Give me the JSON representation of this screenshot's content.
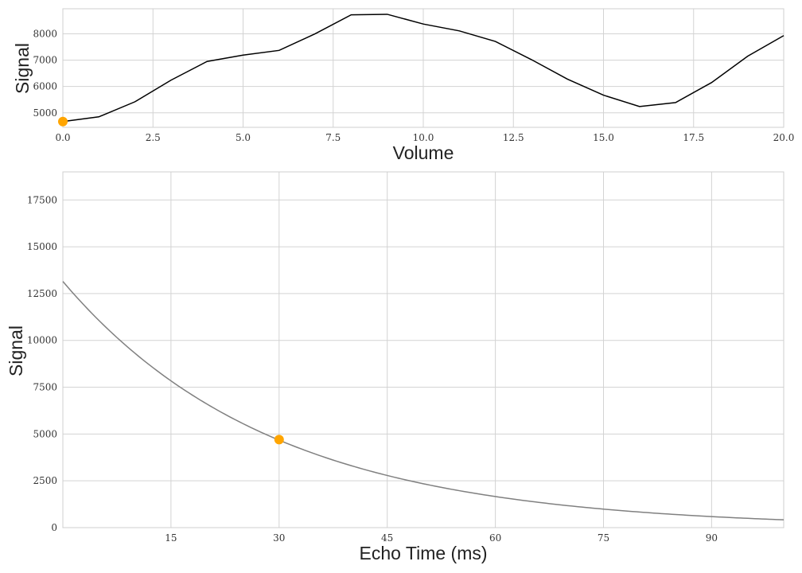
{
  "chart_data": [
    {
      "type": "line",
      "xlabel": "Volume",
      "ylabel": "Signal",
      "xlim": [
        0,
        20
      ],
      "ylim": [
        4450,
        8950
      ],
      "xticks": [
        0,
        2.5,
        5,
        7.5,
        10,
        12.5,
        15,
        17.5,
        20
      ],
      "xtick_labels": [
        "0.0",
        "2.5",
        "5.0",
        "7.5",
        "10.0",
        "12.5",
        "15.0",
        "17.5",
        "20.0"
      ],
      "yticks": [
        5000,
        6000,
        7000,
        8000
      ],
      "ytick_labels": [
        "5000",
        "6000",
        "7000",
        "8000"
      ],
      "grid": true,
      "series": [
        {
          "color": "#000000",
          "x": [
            0,
            1,
            2,
            3,
            4,
            5,
            6,
            7,
            8,
            9,
            10,
            11,
            12,
            13,
            14,
            15,
            16,
            17,
            18,
            19,
            20
          ],
          "values": [
            4670,
            4850,
            5420,
            6240,
            6950,
            7190,
            7370,
            8000,
            8720,
            8740,
            8370,
            8110,
            7710,
            7020,
            6280,
            5670,
            5240,
            5390,
            6150,
            7150,
            7930
          ]
        }
      ],
      "highlight": {
        "x": 0,
        "y": 4670,
        "color": "#FFA500"
      }
    },
    {
      "type": "line",
      "xlabel": "Echo Time (ms)",
      "ylabel": "Signal",
      "xlim": [
        0,
        100
      ],
      "ylim": [
        0,
        19000
      ],
      "xticks": [
        15,
        30,
        45,
        60,
        75,
        90
      ],
      "xtick_labels": [
        "15",
        "30",
        "45",
        "60",
        "75",
        "90"
      ],
      "yticks": [
        0,
        2500,
        5000,
        7500,
        10000,
        12500,
        15000,
        17500
      ],
      "ytick_labels": [
        "0",
        "2500",
        "5000",
        "7500",
        "10000",
        "12500",
        "15000",
        "17500"
      ],
      "grid": true,
      "series": [
        {
          "color": "#808080",
          "function": "S0*exp(-TE/T2)",
          "S0": 13150,
          "T2": 29,
          "x_range": [
            0,
            100
          ]
        }
      ],
      "highlight": {
        "x": 30,
        "y": 4700,
        "color": "#FFA500"
      }
    }
  ]
}
